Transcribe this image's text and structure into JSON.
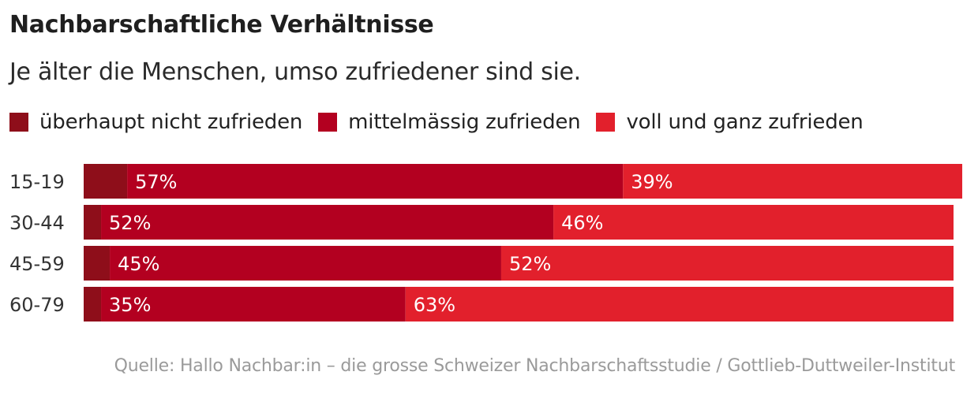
{
  "title": "Nachbarschaftliche Verhältnisse",
  "subtitle": "Je älter die Menschen, umso zufriedener sind sie.",
  "source": "Quelle: Hallo Nachbar:in – die grosse Schweizer Nachbarschaftsstudie / Gottlieb-Duttweiler-Institut",
  "colors": {
    "ueberhaupt_nicht": "#8e0e1a",
    "mittelmaessig": "#b30020",
    "voll_und_ganz": "#e2202c"
  },
  "chart_data": {
    "type": "bar",
    "orientation": "horizontal",
    "stacked": true,
    "categories": [
      "15-19",
      "30-44",
      "45-59",
      "60-79"
    ],
    "series": [
      {
        "name": "überhaupt nicht zufrieden",
        "values": [
          5,
          2,
          3,
          2
        ],
        "color": "#8e0e1a",
        "labels": [
          "",
          "",
          "",
          ""
        ]
      },
      {
        "name": "mittelmässig zufrieden",
        "values": [
          57,
          52,
          45,
          35
        ],
        "color": "#b30020",
        "labels": [
          "57%",
          "52%",
          "45%",
          "35%"
        ]
      },
      {
        "name": "voll und ganz zufrieden",
        "values": [
          39,
          46,
          52,
          63
        ],
        "color": "#e2202c",
        "labels": [
          "39%",
          "46%",
          "52%",
          "63%"
        ]
      }
    ],
    "xlim": [
      0,
      100
    ],
    "legend": "top-left",
    "grid": false
  }
}
